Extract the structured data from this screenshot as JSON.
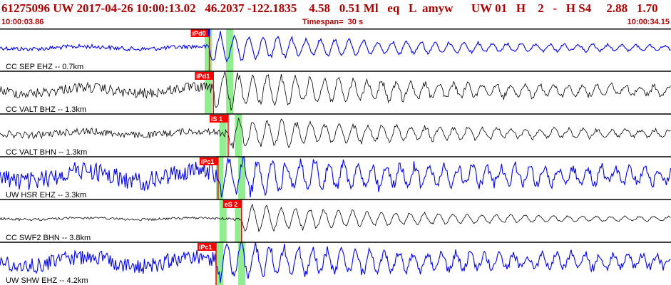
{
  "header": {
    "line1": "61275096 UW 2017-04-26 10:00:13.02   46.2037 -122.1835    4.58   0.51 Ml   eq   L  amyw      UW 01   H    2   -   H S4     2.88   1.70",
    "start_time": "10:00:03.86",
    "timespan": "Timespan=  30 s",
    "end_time": "10:00:34.15"
  },
  "colors": {
    "text_accent": "#b00000",
    "trace_blue": "#0000ff",
    "trace_black": "#000000",
    "pick_red": "#ff0000",
    "window_green": "#90ee90"
  },
  "traces": [
    {
      "label": "CC SEP EHZ -- 0.7km",
      "color": "blue",
      "amplitude": 0.35,
      "noise": 0.05,
      "pick_label": "iPd0",
      "pick_time": 0.312,
      "windows": [
        0.305,
        0.337
      ],
      "peak": true
    },
    {
      "label": "CC VALT BHZ -- 1.3km",
      "color": "black",
      "amplitude": 0.4,
      "noise": 0.12,
      "pick_label": "iPd1",
      "pick_time": 0.318,
      "windows": [
        0.305,
        0.337
      ],
      "peak": false
    },
    {
      "label": "CC VALT BHN -- 1.3km",
      "color": "black",
      "amplitude": 0.35,
      "noise": 0.08,
      "pick_label": "iS 1",
      "pick_time": 0.34,
      "windows": [
        0.327,
        0.35
      ],
      "peak": false
    },
    {
      "label": "UW HSR EHZ -- 3.3km",
      "color": "blue",
      "amplitude": 0.35,
      "noise": 0.22,
      "pick_label": "iPc1",
      "pick_time": 0.325,
      "windows": [
        0.322,
        0.355
      ],
      "peak": false
    },
    {
      "label": "CC SWF2 BHN -- 3.8km",
      "color": "black",
      "amplitude": 0.35,
      "noise": 0.03,
      "pick_label": "eS 2",
      "pick_time": 0.36,
      "windows": [
        0.327,
        0.35
      ],
      "peak": false
    },
    {
      "label": "UW SHW EHZ -- 4.2km",
      "color": "blue",
      "amplitude": 0.35,
      "noise": 0.18,
      "pick_label": "iPc1",
      "pick_time": 0.322,
      "windows": [
        0.322,
        0.355
      ],
      "peak": false
    }
  ]
}
